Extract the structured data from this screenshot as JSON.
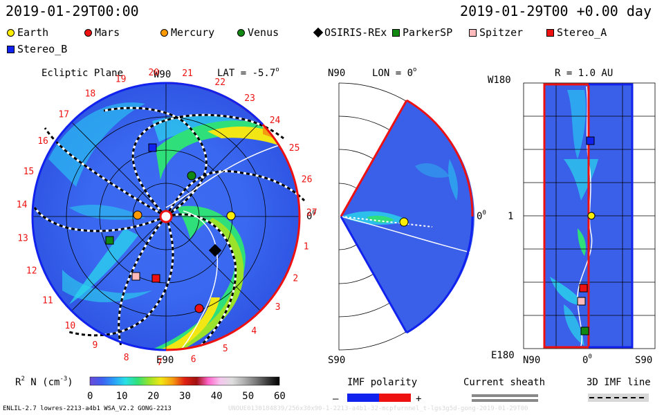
{
  "header": {
    "datetime": "2019-01-29T00:00",
    "forecast": "2019-01-29T00 +0.00 day"
  },
  "legend": [
    {
      "label": "Earth",
      "shape": "circle",
      "color": "#ffee00"
    },
    {
      "label": "Mars",
      "shape": "circle",
      "color": "#ee1111"
    },
    {
      "label": "Mercury",
      "shape": "circle",
      "color": "#ff9900"
    },
    {
      "label": "Venus",
      "shape": "circle",
      "color": "#118811"
    },
    {
      "label": "OSIRIS-REx",
      "shape": "diamond",
      "color": "#000000"
    },
    {
      "label": "ParkerSP",
      "shape": "square",
      "color": "#118811"
    },
    {
      "label": "Spitzer",
      "shape": "square",
      "color": "#ffbbbb"
    },
    {
      "label": "Stereo_A",
      "shape": "square",
      "color": "#ee1111"
    },
    {
      "label": "Stereo_B",
      "shape": "square",
      "color": "#1122ee"
    }
  ],
  "ecliptic": {
    "title": "Ecliptic Plane",
    "lat": "LAT = -5.7",
    "lat_sup": "o",
    "top_label": "W90",
    "bottom_label": "E90",
    "right_label": "0",
    "right_sup": "0",
    "carrington_ticks": [
      "1",
      "2",
      "3",
      "4",
      "5",
      "6",
      "7",
      "8",
      "9",
      "10",
      "11",
      "12",
      "13",
      "14",
      "15",
      "16",
      "17",
      "18",
      "19",
      "20",
      "21",
      "22",
      "23",
      "24",
      "25",
      "26",
      "27"
    ]
  },
  "meridional": {
    "top_label": "N90",
    "bottom_label": "S90",
    "lon": "LON = 0",
    "lon_sup": "o",
    "right_label": "0",
    "right_sup": "0"
  },
  "radial": {
    "title": "R = 1.0 AU",
    "top_left": "W180",
    "middle_left": "1",
    "bottom_left": "E180",
    "bottom_n": "N90",
    "bottom_zero": "0",
    "bottom_zero_sup": "0",
    "bottom_s": "S90"
  },
  "colorbar": {
    "label": "R",
    "label_sup": "2",
    "label_rest": " N (cm",
    "label_exp": "-3",
    "label_end": ")",
    "ticks": [
      "0",
      "10",
      "20",
      "30",
      "40",
      "50",
      "60"
    ],
    "stops": [
      "#6a4bd8",
      "#3f5ff0",
      "#2a9cf7",
      "#29e0e6",
      "#2fe07a",
      "#9ae32a",
      "#f2e614",
      "#f59a10",
      "#e02012",
      "#a01010",
      "#ff66cc",
      "#f4c6ee",
      "#dedede",
      "#b0b0b0",
      "#7a7a7a",
      "#3a3a3a",
      "#000000"
    ]
  },
  "imf_polarity": {
    "title": "IMF polarity",
    "minus": "–",
    "plus": "+",
    "neg_color": "#1122ee",
    "pos_color": "#ee1111"
  },
  "current_sheath": {
    "title": "Current sheath"
  },
  "imf_line": {
    "title": "3D IMF line"
  },
  "footer": {
    "left": "ENLIL-2.7 lowres-2213-a4b1 WSA_V2.2 GONG-2213",
    "right": "UNOUE0130184839/256x30x90-1-2213-a4b1-32-mcpfurnnel_t-lgs3g5d-gong-2019-01-29T00"
  }
}
